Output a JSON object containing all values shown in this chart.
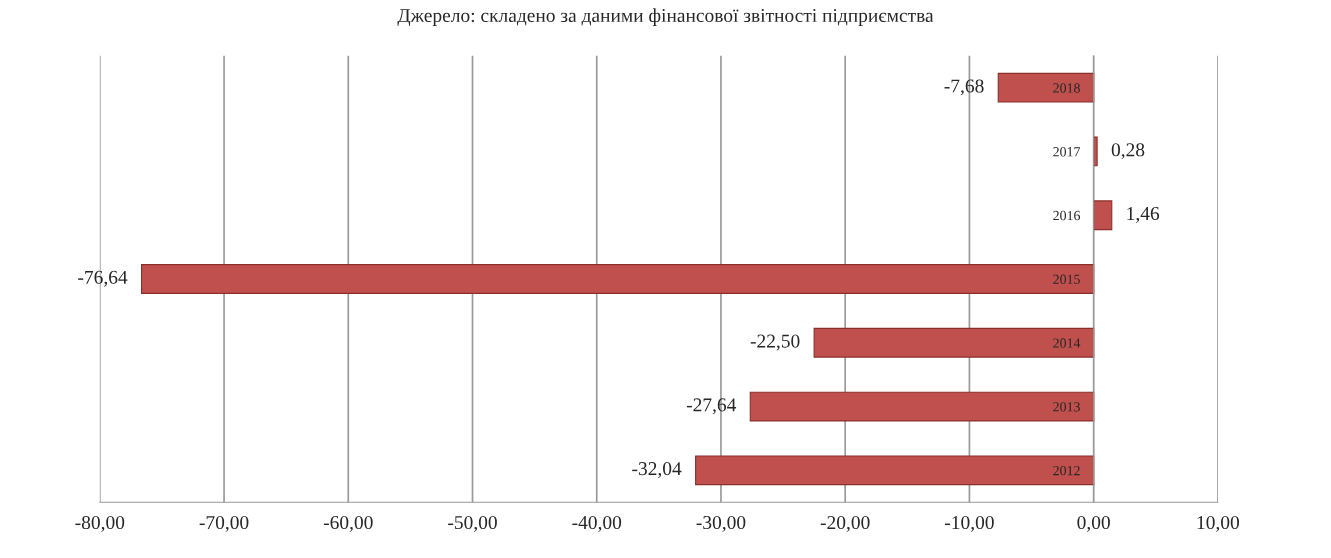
{
  "chart_data": {
    "type": "bar",
    "orientation": "horizontal",
    "categories": [
      "2018",
      "2017",
      "2016",
      "2015",
      "2014",
      "2013",
      "2012"
    ],
    "values": [
      -7.68,
      0.28,
      1.46,
      -76.64,
      -22.5,
      -27.64,
      -32.04
    ],
    "value_labels": [
      "-7,68",
      "0,28",
      "1,46",
      "-76,64",
      "-22,50",
      "-27,64",
      "-32,04"
    ],
    "color": "#c0504d",
    "xlim": [
      -80,
      10
    ],
    "xticks": [
      {
        "value": -80,
        "label": "-80,00"
      },
      {
        "value": -70,
        "label": "-70,00"
      },
      {
        "value": -60,
        "label": "-60,00"
      },
      {
        "value": -50,
        "label": "-50,00"
      },
      {
        "value": -40,
        "label": "-40,00"
      },
      {
        "value": -30,
        "label": "-30,00"
      },
      {
        "value": -20,
        "label": "-20,00"
      },
      {
        "value": -10,
        "label": "-10,00"
      },
      {
        "value": 0,
        "label": "0,00"
      },
      {
        "value": 10,
        "label": "10,00"
      }
    ],
    "grid": "x",
    "annotations": [
      "Джерело: складено за даними фінансової звітності підприємства"
    ]
  }
}
